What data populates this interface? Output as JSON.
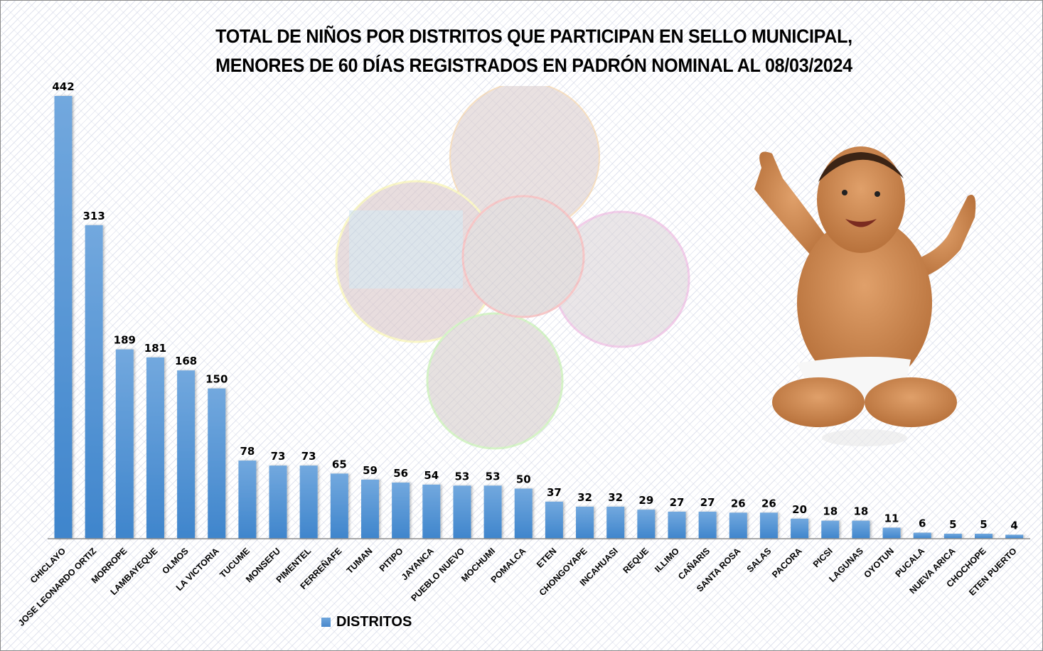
{
  "chart_data": {
    "type": "bar",
    "title": "TOTAL DE NIÑOS POR DISTRITOS QUE PARTICIPAN EN SELLO MUNICIPAL, MENORES DE 60 DÍAS REGISTRADOS EN PADRÓN NOMINAL AL 08/03/2024",
    "title_lines": [
      "TOTAL DE NIÑOS POR DISTRITOS QUE PARTICIPAN EN SELLO MUNICIPAL,",
      "MENORES DE 60 DÍAS REGISTRADOS EN PADRÓN NOMINAL AL 08/03/2024"
    ],
    "xlabel": "",
    "ylabel": "",
    "ylim": [
      0,
      442
    ],
    "grid": false,
    "legend": {
      "position": "bottom-left",
      "entries": [
        "DISTRITOS"
      ]
    },
    "categories": [
      "CHICLAYO",
      "JOSE LEONARDO ORTIZ",
      "MORROPE",
      "LAMBAYEQUE",
      "OLMOS",
      "LA VICTORIA",
      "TUCUME",
      "MONSEFU",
      "PIMENTEL",
      "FERREÑAFE",
      "TUMAN",
      "PITIPO",
      "JAYANCA",
      "PUEBLO NUEVO",
      "MOCHUMI",
      "POMALCA",
      "ETEN",
      "CHONGOYAPE",
      "INCAHUASI",
      "REQUE",
      "ILLIMO",
      "CAÑARIS",
      "SANTA ROSA",
      "SALAS",
      "PACORA",
      "PICSI",
      "LAGUNAS",
      "OYOTUN",
      "PUCALA",
      "NUEVA ARICA",
      "CHOCHOPE",
      "ETEN PUERTO"
    ],
    "series": [
      {
        "name": "DISTRITOS",
        "color": "#5b9bd5",
        "values": [
          442,
          313,
          189,
          181,
          168,
          150,
          78,
          73,
          73,
          65,
          59,
          56,
          54,
          53,
          53,
          50,
          37,
          32,
          32,
          29,
          27,
          27,
          26,
          26,
          20,
          18,
          18,
          11,
          6,
          5,
          5,
          4
        ]
      }
    ]
  },
  "decorations": {
    "photo_collage": "five circular faded photos of children",
    "baby_image": "smiling baby sitting with raised arms"
  },
  "colors": {
    "bar_top": "#6fa6dc",
    "bar_bottom": "#3f85cc",
    "axis": "#8c8c8c"
  }
}
